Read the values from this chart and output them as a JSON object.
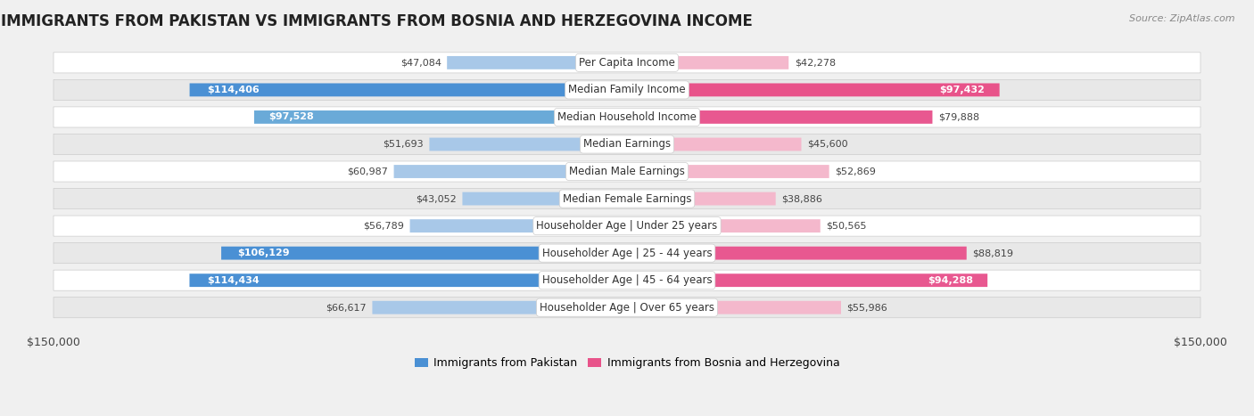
{
  "title": "IMMIGRANTS FROM PAKISTAN VS IMMIGRANTS FROM BOSNIA AND HERZEGOVINA INCOME",
  "source": "Source: ZipAtlas.com",
  "categories": [
    "Per Capita Income",
    "Median Family Income",
    "Median Household Income",
    "Median Earnings",
    "Median Male Earnings",
    "Median Female Earnings",
    "Householder Age | Under 25 years",
    "Householder Age | 25 - 44 years",
    "Householder Age | 45 - 64 years",
    "Householder Age | Over 65 years"
  ],
  "pakistan_values": [
    47084,
    114406,
    97528,
    51693,
    60987,
    43052,
    56789,
    106129,
    114434,
    66617
  ],
  "bosnia_values": [
    42278,
    97432,
    79888,
    45600,
    52869,
    38886,
    50565,
    88819,
    94288,
    55986
  ],
  "pakistan_colors": [
    "#a8c8e8",
    "#4a90d4",
    "#6aaad8",
    "#a8c8e8",
    "#a8c8e8",
    "#a8c8e8",
    "#a8c8e8",
    "#4a90d4",
    "#4a90d4",
    "#a8c8e8"
  ],
  "bosnia_colors": [
    "#f4b8cc",
    "#e8538a",
    "#e85890",
    "#f4b8cc",
    "#f4b8cc",
    "#f4b8cc",
    "#f4b8cc",
    "#e85890",
    "#e85890",
    "#f4b8cc"
  ],
  "pakistan_text_colors": [
    "#444444",
    "#ffffff",
    "#ffffff",
    "#444444",
    "#444444",
    "#444444",
    "#444444",
    "#ffffff",
    "#ffffff",
    "#444444"
  ],
  "bosnia_text_colors": [
    "#444444",
    "#ffffff",
    "#444444",
    "#444444",
    "#444444",
    "#444444",
    "#444444",
    "#444444",
    "#ffffff",
    "#444444"
  ],
  "pakistan_label": "Immigrants from Pakistan",
  "bosnia_label": "Immigrants from Bosnia and Herzegovina",
  "max_value": 150000,
  "background_color": "#f0f0f0",
  "row_bg_even": "#ffffff",
  "row_bg_odd": "#e8e8e8",
  "axis_label": "$150,000",
  "title_fontsize": 12,
  "label_fontsize": 8.5,
  "value_fontsize": 8.0
}
